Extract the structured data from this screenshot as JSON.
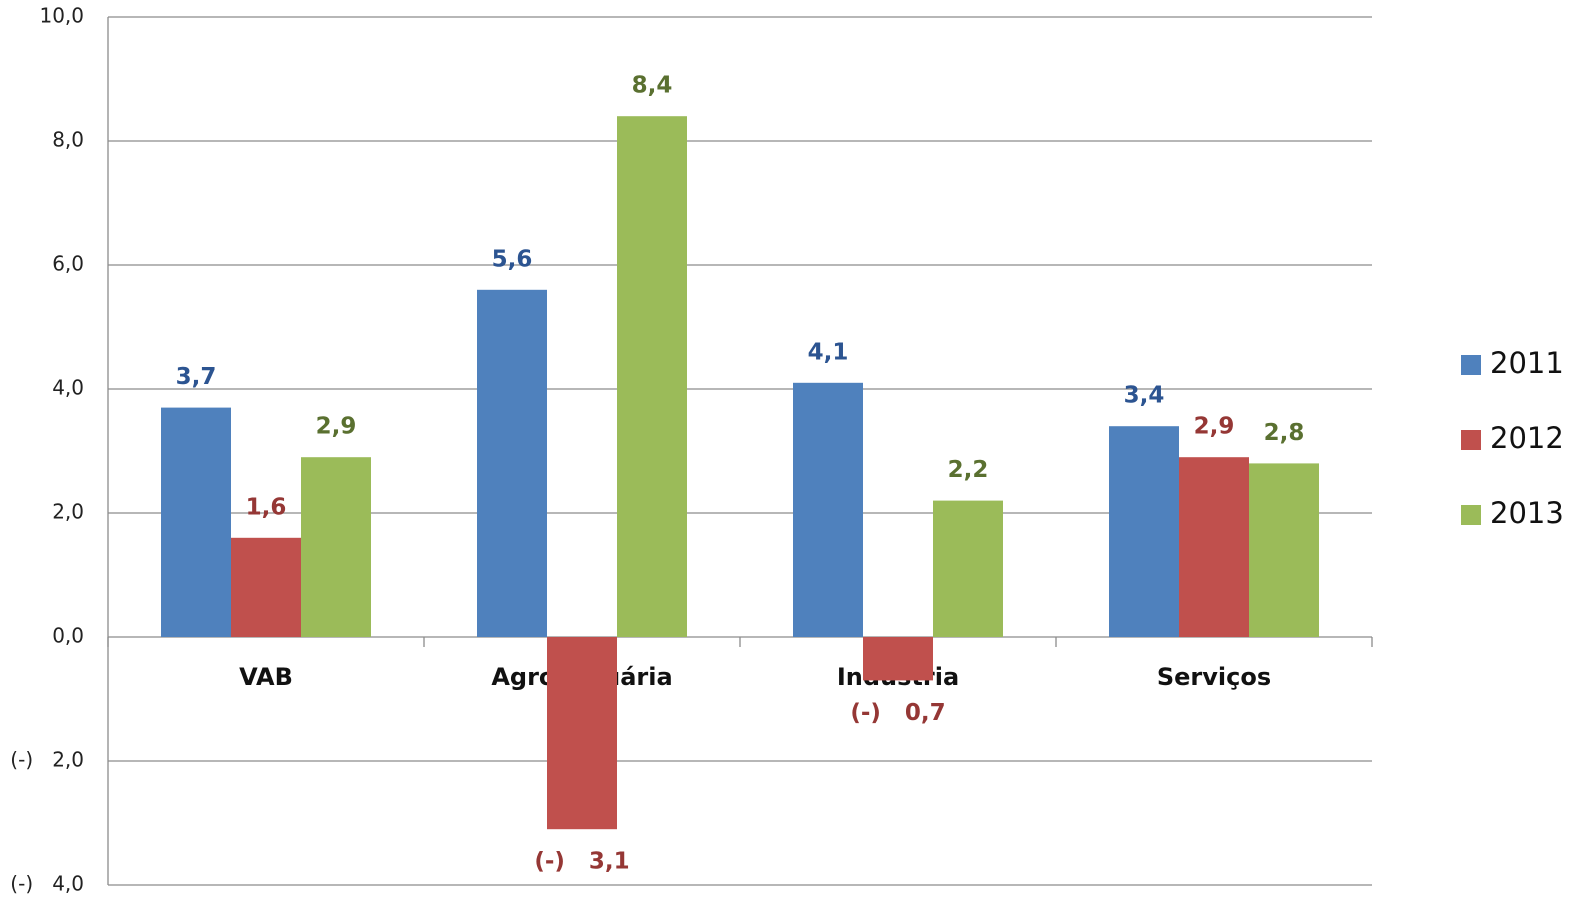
{
  "chart_data": {
    "type": "bar",
    "categories": [
      "VAB",
      "Agropecuária",
      "Indústria",
      "Serviços"
    ],
    "series": [
      {
        "name": "2011",
        "color": "#4f81bd",
        "label_color": "#2c5491",
        "values": [
          3.7,
          5.6,
          4.1,
          3.4
        ],
        "value_labels": [
          "3,7",
          "5,6",
          "4,1",
          "3,4"
        ]
      },
      {
        "name": "2012",
        "color": "#c0504d",
        "label_color": "#953735",
        "values": [
          1.6,
          -3.1,
          -0.7,
          2.9
        ],
        "value_labels": [
          "1,6",
          "(-)   3,1",
          "(-)   0,7",
          "2,9"
        ]
      },
      {
        "name": "2013",
        "color": "#9bbb59",
        "label_color": "#5a7030",
        "values": [
          2.9,
          8.4,
          2.2,
          2.8
        ],
        "value_labels": [
          "2,9",
          "8,4",
          "2,2",
          "2,8"
        ]
      }
    ],
    "ylim": [
      -4,
      10
    ],
    "yticks": [
      {
        "value": -4,
        "label": "(-)   4,0"
      },
      {
        "value": -2,
        "label": "(-)   2,0"
      },
      {
        "value": 0,
        "label": "0,0"
      },
      {
        "value": 2,
        "label": "2,0"
      },
      {
        "value": 4,
        "label": "4,0"
      },
      {
        "value": 6,
        "label": "6,0"
      },
      {
        "value": 8,
        "label": "8,0"
      },
      {
        "value": 10,
        "label": "10,0"
      }
    ],
    "grid": true,
    "legend": "right"
  }
}
